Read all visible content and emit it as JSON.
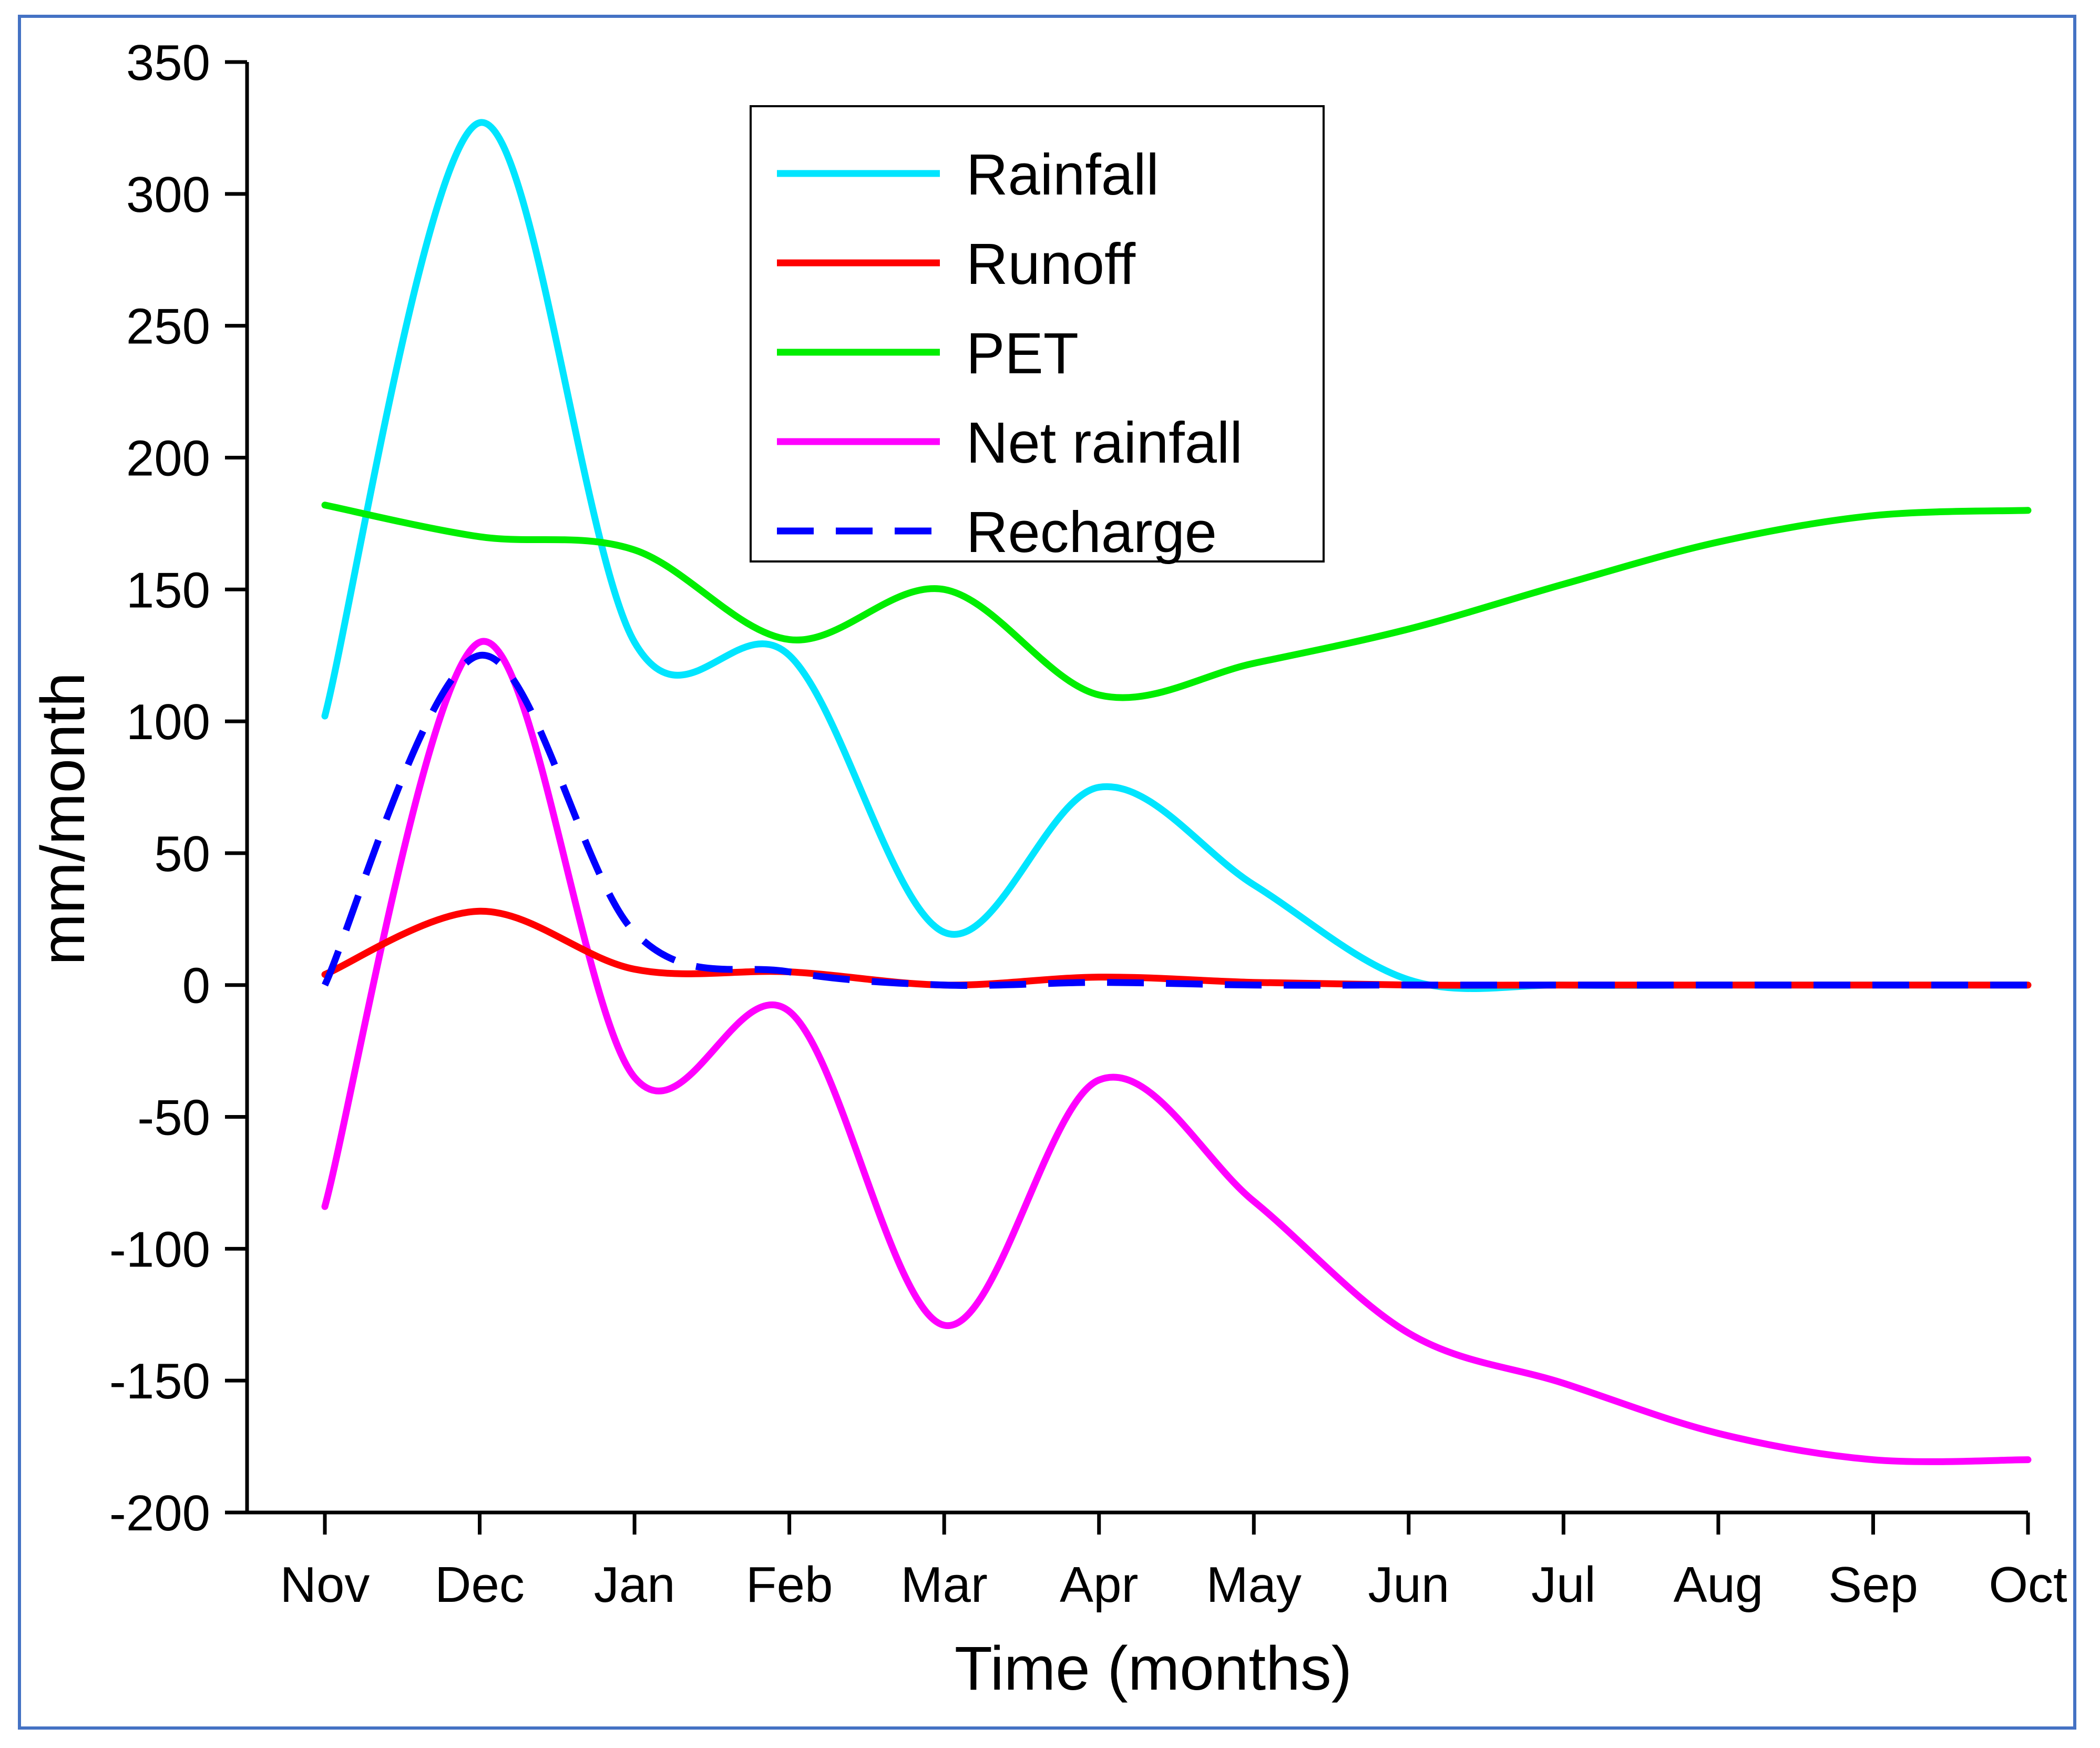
{
  "chart_data": {
    "type": "line",
    "title": "",
    "xlabel": "Time (months)",
    "ylabel": "mm/month",
    "categories": [
      "Nov",
      "Dec",
      "Jan",
      "Feb",
      "Mar",
      "Apr",
      "May",
      "Jun",
      "Jul",
      "Aug",
      "Sep",
      "Oct"
    ],
    "ylim": [
      -200,
      350
    ],
    "yticks": [
      -200,
      -150,
      -100,
      -50,
      0,
      50,
      100,
      150,
      200,
      250,
      300,
      350
    ],
    "ytick_labels": [
      "-200",
      "-150",
      "-100",
      "-50",
      "0",
      "50",
      "100",
      "150",
      "200",
      "250",
      "300",
      "350"
    ],
    "legend_position": "top-center",
    "series": [
      {
        "name": "Rainfall",
        "color": "#00e5ff",
        "dashed": false,
        "values": [
          102,
          327,
          130,
          125,
          20,
          75,
          38,
          2,
          0,
          0,
          0,
          0
        ]
      },
      {
        "name": "Runoff",
        "color": "#ff0000",
        "dashed": false,
        "values": [
          4,
          28,
          6,
          5,
          0,
          3,
          1,
          0,
          0,
          0,
          0,
          0
        ]
      },
      {
        "name": "PET",
        "color": "#00ee00",
        "dashed": false,
        "values": [
          182,
          170,
          165,
          131,
          150,
          110,
          122,
          135,
          152,
          168,
          178,
          180
        ]
      },
      {
        "name": "Net rainfall",
        "color": "#ff00ff",
        "dashed": false,
        "values": [
          -84,
          130,
          -35,
          -10,
          -129,
          -36,
          -82,
          -132,
          -151,
          -170,
          -180,
          -180
        ]
      },
      {
        "name": "Recharge",
        "color": "#0000ff",
        "dashed": true,
        "values": [
          0,
          125,
          20,
          5,
          0,
          1,
          0,
          0,
          0,
          0,
          0,
          0
        ]
      }
    ]
  }
}
